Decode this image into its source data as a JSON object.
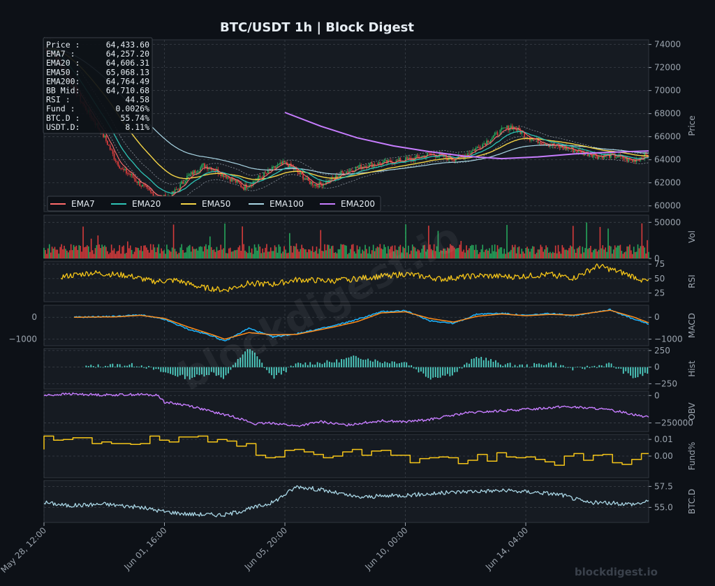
{
  "chart_data": {
    "type": "line",
    "title": "BTC/USDT  1h  |  Block Digest",
    "watermark": "blockdigest.io",
    "footer": "blockdigest.io",
    "x_ticks": [
      "May 28, 12:00",
      "Jun 01, 16:00",
      "Jun 05, 20:00",
      "Jun 10, 00:00",
      "Jun 14, 04:00"
    ],
    "x_range_hours": [
      0,
      502
    ],
    "x_tick_hours": [
      0,
      100,
      200,
      300,
      400
    ],
    "info_box": [
      {
        "label": "Price :",
        "value": "64,433.60"
      },
      {
        "label": "EMA7  :",
        "value": "64,257.20"
      },
      {
        "label": "EMA20 :",
        "value": "64,606.31"
      },
      {
        "label": "EMA50 :",
        "value": "65,068.13"
      },
      {
        "label": "EMA200:",
        "value": "64,764.49"
      },
      {
        "label": "BB Mid:",
        "value": "64,710.68"
      },
      {
        "label": "RSI   :",
        "value": "44.58"
      },
      {
        "label": "Fund  :",
        "value": "0.0026%"
      },
      {
        "label": "BTC.D :",
        "value": "55.74%"
      },
      {
        "label": "USDT.D:",
        "value": "8.11%"
      }
    ],
    "colors": {
      "background": "#0d1117",
      "panel": "#161b22",
      "grid": "#3a4048",
      "up": "#26a65b",
      "down": "#d63b3b",
      "ema7": "#ff6b6b",
      "ema20": "#2ec4b6",
      "ema50": "#f5d547",
      "ema100": "#a9d6e5",
      "ema200": "#c77dff",
      "macd": "#1fb6ff",
      "signal": "#ff8c1a",
      "hist": "#4fd1c5",
      "rsi": "#f5c518",
      "obv": "#c77dff",
      "fund": "#f5c518",
      "btcd": "#a9d6e5"
    },
    "panels": [
      {
        "id": "price",
        "ylabel": "Price",
        "ylim": [
          59500,
          74400
        ],
        "ticks": [
          60000,
          62000,
          64000,
          66000,
          68000,
          70000,
          72000,
          74000
        ],
        "tick_labels": [
          "60000",
          "62000",
          "64000",
          "66000",
          "68000",
          "70000",
          "72000",
          "74000"
        ],
        "legend": [
          "EMA7",
          "EMA20",
          "EMA50",
          "EMA100",
          "EMA200"
        ],
        "legend_position": "lower-left",
        "price_path": [
          [
            0,
            73700
          ],
          [
            8,
            73000
          ],
          [
            15,
            71500
          ],
          [
            22,
            70200
          ],
          [
            30,
            68600
          ],
          [
            38,
            67200
          ],
          [
            45,
            65900
          ],
          [
            52,
            64200
          ],
          [
            58,
            63100
          ],
          [
            64,
            62700
          ],
          [
            70,
            62000
          ],
          [
            76,
            61400
          ],
          [
            82,
            60900
          ],
          [
            88,
            60700
          ],
          [
            94,
            60900
          ],
          [
            100,
            61600
          ],
          [
            106,
            62500
          ],
          [
            112,
            63000
          ],
          [
            118,
            63500
          ],
          [
            124,
            63300
          ],
          [
            130,
            62900
          ],
          [
            136,
            62500
          ],
          [
            142,
            62100
          ],
          [
            148,
            61600
          ],
          [
            154,
            62000
          ],
          [
            160,
            62500
          ],
          [
            166,
            62900
          ],
          [
            172,
            63400
          ],
          [
            178,
            63700
          ],
          [
            184,
            63300
          ],
          [
            190,
            62700
          ],
          [
            196,
            62100
          ],
          [
            202,
            61800
          ],
          [
            208,
            62000
          ],
          [
            214,
            62300
          ],
          [
            220,
            62800
          ],
          [
            226,
            63100
          ],
          [
            232,
            63300
          ],
          [
            238,
            63500
          ],
          [
            244,
            63600
          ],
          [
            250,
            63700
          ],
          [
            256,
            63800
          ],
          [
            262,
            63900
          ],
          [
            268,
            64000
          ],
          [
            274,
            64100
          ],
          [
            280,
            64300
          ],
          [
            286,
            64500
          ],
          [
            292,
            64400
          ],
          [
            298,
            64200
          ],
          [
            304,
            64100
          ],
          [
            310,
            64300
          ],
          [
            316,
            64700
          ],
          [
            322,
            65100
          ],
          [
            328,
            65600
          ],
          [
            334,
            66100
          ],
          [
            340,
            66600
          ],
          [
            346,
            66900
          ],
          [
            352,
            66500
          ],
          [
            358,
            66000
          ],
          [
            364,
            65700
          ],
          [
            370,
            65500
          ],
          [
            376,
            65300
          ],
          [
            382,
            65100
          ],
          [
            388,
            65000
          ],
          [
            394,
            64800
          ],
          [
            400,
            64600
          ],
          [
            406,
            64500
          ],
          [
            412,
            64300
          ],
          [
            418,
            64400
          ],
          [
            424,
            64300
          ],
          [
            430,
            64100
          ],
          [
            436,
            63900
          ],
          [
            442,
            64200
          ],
          [
            448,
            64433.6
          ]
        ],
        "ema200_start_hours": 200,
        "ema200_path": [
          [
            200,
            68100
          ],
          [
            230,
            66900
          ],
          [
            260,
            65900
          ],
          [
            290,
            65200
          ],
          [
            320,
            64700
          ],
          [
            350,
            64300
          ],
          [
            380,
            64100
          ],
          [
            410,
            64250
          ],
          [
            440,
            64500
          ],
          [
            470,
            64650
          ],
          [
            502,
            64764
          ]
        ]
      },
      {
        "id": "vol",
        "ylabel": "Vol",
        "ylim": [
          0,
          60000
        ],
        "ticks": [
          0,
          50000
        ],
        "tick_labels": [
          "0",
          "50000"
        ]
      },
      {
        "id": "rsi",
        "ylabel": "RSI",
        "ylim": [
          10,
          80
        ],
        "ticks": [
          25,
          50,
          75
        ],
        "tick_labels": [
          "25",
          "50",
          "75"
        ],
        "start_hours": 14,
        "path": [
          [
            14,
            53
          ],
          [
            40,
            60
          ],
          [
            70,
            55
          ],
          [
            90,
            45
          ],
          [
            110,
            47
          ],
          [
            130,
            35
          ],
          [
            150,
            30
          ],
          [
            170,
            42
          ],
          [
            190,
            40
          ],
          [
            210,
            48
          ],
          [
            240,
            46
          ],
          [
            270,
            52
          ],
          [
            300,
            58
          ],
          [
            330,
            49
          ],
          [
            360,
            55
          ],
          [
            390,
            53
          ],
          [
            420,
            57
          ],
          [
            440,
            51
          ],
          [
            460,
            72
          ],
          [
            480,
            60
          ],
          [
            502,
            44.6
          ]
        ]
      },
      {
        "id": "macd",
        "ylabel": "MACD",
        "ylim": [
          -1300,
          550
        ],
        "ticks": [
          -1000,
          0
        ],
        "tick_labels": [
          "−1000",
          "0"
        ],
        "start_hours": 25,
        "macd_path": [
          [
            25,
            0
          ],
          [
            60,
            40
          ],
          [
            80,
            110
          ],
          [
            100,
            -100
          ],
          [
            120,
            -550
          ],
          [
            140,
            -850
          ],
          [
            150,
            -1100
          ],
          [
            170,
            -500
          ],
          [
            190,
            -900
          ],
          [
            210,
            -750
          ],
          [
            240,
            -400
          ],
          [
            260,
            -100
          ],
          [
            280,
            250
          ],
          [
            300,
            300
          ],
          [
            320,
            -150
          ],
          [
            340,
            -280
          ],
          [
            360,
            150
          ],
          [
            380,
            180
          ],
          [
            400,
            80
          ],
          [
            420,
            170
          ],
          [
            440,
            80
          ],
          [
            470,
            350
          ],
          [
            490,
            -100
          ],
          [
            502,
            -300
          ]
        ],
        "signal_path": [
          [
            25,
            0
          ],
          [
            60,
            20
          ],
          [
            80,
            90
          ],
          [
            100,
            -50
          ],
          [
            120,
            -450
          ],
          [
            140,
            -800
          ],
          [
            150,
            -1000
          ],
          [
            170,
            -700
          ],
          [
            190,
            -800
          ],
          [
            210,
            -780
          ],
          [
            240,
            -450
          ],
          [
            260,
            -200
          ],
          [
            280,
            200
          ],
          [
            300,
            250
          ],
          [
            320,
            -50
          ],
          [
            340,
            -220
          ],
          [
            360,
            50
          ],
          [
            380,
            150
          ],
          [
            400,
            70
          ],
          [
            420,
            130
          ],
          [
            440,
            100
          ],
          [
            470,
            320
          ],
          [
            490,
            0
          ],
          [
            502,
            -250
          ]
        ]
      },
      {
        "id": "hist",
        "ylabel": "Hist",
        "ylim": [
          -330,
          280
        ],
        "ticks": [
          -250,
          0,
          250
        ],
        "tick_labels": [
          "−250",
          "0",
          "250"
        ],
        "start_hours": 35
      },
      {
        "id": "obv",
        "ylabel": "OBV",
        "ylim": [
          -330000,
          40000
        ],
        "ticks": [
          -250000,
          0
        ],
        "tick_labels": [
          "−250000",
          "0"
        ],
        "path": [
          [
            0,
            0
          ],
          [
            20,
            15000
          ],
          [
            50,
            5000
          ],
          [
            80,
            10000
          ],
          [
            95,
            0
          ],
          [
            100,
            -60000
          ],
          [
            120,
            -90000
          ],
          [
            140,
            -150000
          ],
          [
            160,
            -200000
          ],
          [
            175,
            -260000
          ],
          [
            190,
            -250000
          ],
          [
            210,
            -280000
          ],
          [
            230,
            -240000
          ],
          [
            250,
            -270000
          ],
          [
            280,
            -230000
          ],
          [
            300,
            -240000
          ],
          [
            320,
            -220000
          ],
          [
            350,
            -160000
          ],
          [
            380,
            -140000
          ],
          [
            410,
            -120000
          ],
          [
            430,
            -100000
          ],
          [
            460,
            -120000
          ],
          [
            480,
            -150000
          ],
          [
            502,
            -200000
          ]
        ]
      },
      {
        "id": "fund",
        "ylabel": "Fund%",
        "ylim": [
          -0.013,
          0.013
        ],
        "ticks": [
          0,
          0.01
        ],
        "tick_labels": [
          "0.00",
          "0.01"
        ]
      },
      {
        "id": "btcd",
        "ylabel": "BTC.D",
        "ylim": [
          53.2,
          58.2
        ],
        "ticks": [
          55.0,
          57.5
        ],
        "tick_labels": [
          "55.0",
          "57.5"
        ],
        "path": [
          [
            0,
            55.6
          ],
          [
            20,
            55.2
          ],
          [
            50,
            55.4
          ],
          [
            80,
            55.0
          ],
          [
            100,
            54.5
          ],
          [
            120,
            54.2
          ],
          [
            150,
            54.1
          ],
          [
            170,
            54.8
          ],
          [
            190,
            55.6
          ],
          [
            210,
            57.5
          ],
          [
            230,
            57.1
          ],
          [
            260,
            56.2
          ],
          [
            290,
            56.4
          ],
          [
            320,
            56.6
          ],
          [
            350,
            56.9
          ],
          [
            380,
            57.0
          ],
          [
            410,
            56.8
          ],
          [
            430,
            56.5
          ],
          [
            450,
            55.6
          ],
          [
            470,
            55.5
          ],
          [
            490,
            55.4
          ],
          [
            502,
            55.7
          ]
        ]
      }
    ]
  }
}
